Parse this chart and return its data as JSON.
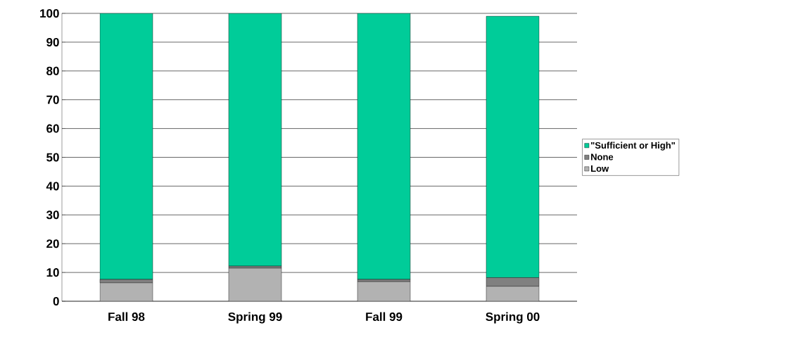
{
  "chart_data": {
    "type": "bar",
    "stacked": true,
    "categories": [
      "Fall 98",
      "Spring 99",
      "Fall 99",
      "Spring 00"
    ],
    "series": [
      {
        "name": "Low",
        "color": "#b2b2b2",
        "values": [
          6.4,
          11.5,
          6.8,
          5.2
        ]
      },
      {
        "name": "None",
        "color": "#808080",
        "values": [
          1.2,
          0.7,
          0.8,
          3.0
        ]
      },
      {
        "name": "\"Sufficient or High\"",
        "color": "#00cc99",
        "values": [
          92.4,
          87.8,
          92.4,
          90.8
        ]
      }
    ],
    "ylim": [
      0,
      100
    ],
    "yticks": [
      0,
      10,
      20,
      30,
      40,
      50,
      60,
      70,
      80,
      90,
      100
    ],
    "grid": "y",
    "legend": "right"
  }
}
